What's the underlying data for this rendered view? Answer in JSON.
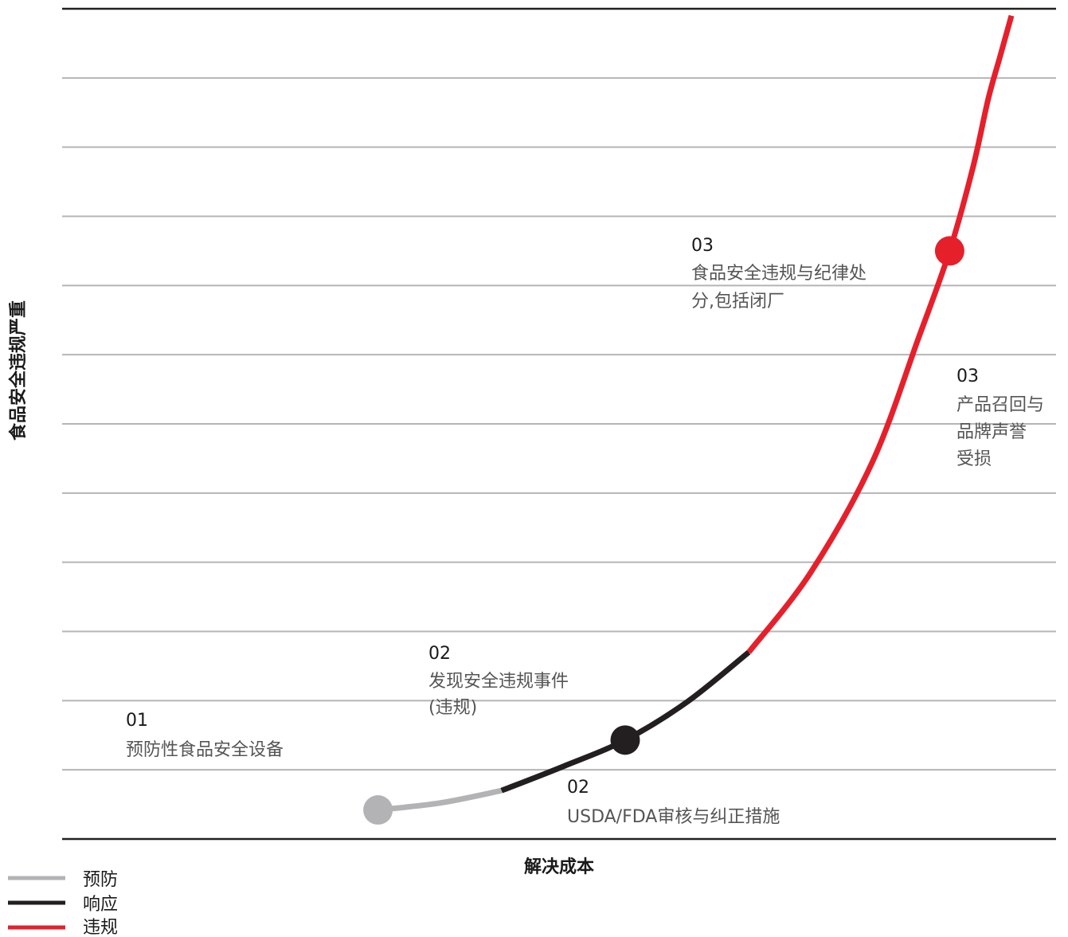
{
  "chart_data": {
    "type": "line",
    "xlabel": "解决成本",
    "ylabel": "食品安全违规严重",
    "xlim": [
      0,
      1
    ],
    "ylim": [
      0,
      12
    ],
    "grid": true,
    "grid_lines": 11,
    "legend_position": "bottom-left",
    "series": [
      {
        "name": "预防",
        "color": "#b3b3b5",
        "x": [
          0.18,
          0.26,
          0.34
        ],
        "y": [
          0.42,
          0.52,
          0.7
        ]
      },
      {
        "name": "响应",
        "color": "#231f20",
        "x": [
          0.34,
          0.42,
          0.5,
          0.58,
          0.66
        ],
        "y": [
          0.7,
          1.05,
          1.43,
          1.98,
          2.7
        ]
      },
      {
        "name": "违规",
        "color": "#e6202b",
        "x": [
          0.66,
          0.74,
          0.82,
          0.88,
          0.92,
          0.95,
          0.97,
          0.985,
          1.0
        ],
        "y": [
          2.7,
          3.85,
          5.45,
          7.25,
          8.5,
          9.7,
          10.7,
          11.3,
          11.9
        ]
      }
    ],
    "markers": [
      {
        "x": 0.18,
        "y": 0.42,
        "color": "#b3b3b5"
      },
      {
        "x": 0.5,
        "y": 1.43,
        "color": "#231f20"
      },
      {
        "x": 0.92,
        "y": 8.5,
        "color": "#e6202b"
      }
    ],
    "annotations": [
      {
        "number": "01",
        "lines": [
          "预防性食品安全设备"
        ]
      },
      {
        "number": "02",
        "lines": [
          "发现安全违规事件",
          "(违规)"
        ]
      },
      {
        "number": "02",
        "lines": [
          "USDA/FDA审核与纠正措施"
        ]
      },
      {
        "number": "03",
        "lines": [
          "食品安全违规与纪律处",
          "分,包括闭厂"
        ]
      },
      {
        "number": "03",
        "lines": [
          "产品召回与",
          "品牌声誉",
          "受损"
        ]
      }
    ]
  }
}
